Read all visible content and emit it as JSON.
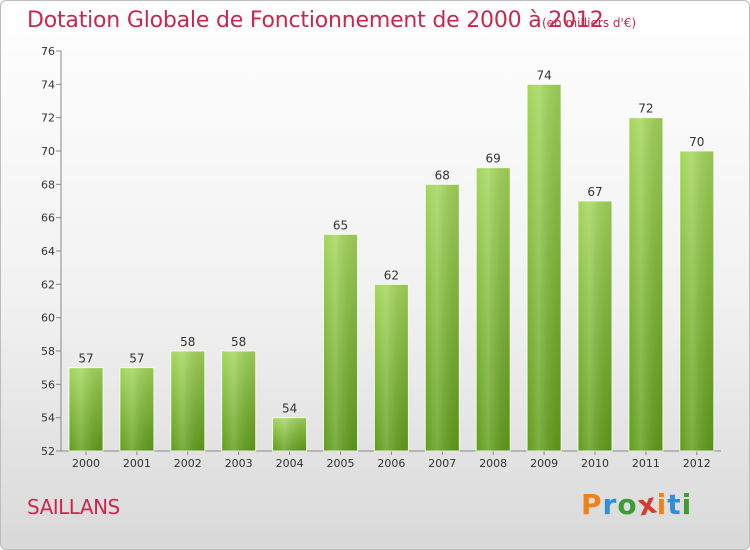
{
  "header": {
    "title": "Dotation Globale de Fonctionnement de 2000 à 2012",
    "unit": "(en milliers d'€)"
  },
  "footer": {
    "place": "SAILLANS",
    "logo_text": "Proxiti"
  },
  "colors": {
    "title": "#c8284e",
    "bar_light": "#a3d65a",
    "bar_dark": "#5f9d19",
    "axis": "#888888",
    "logo": [
      "#f0801a",
      "#2f8fd6",
      "#3d9c34",
      "#d63b2f",
      "#f0801a",
      "#2f8fd6",
      "#3d9c34"
    ]
  },
  "chart_data": {
    "type": "bar",
    "title": "Dotation Globale de Fonctionnement de 2000 à 2012",
    "subtitle": "(en milliers d'€)",
    "xlabel": "",
    "ylabel": "",
    "categories": [
      "2000",
      "2001",
      "2002",
      "2003",
      "2004",
      "2005",
      "2006",
      "2007",
      "2008",
      "2009",
      "2010",
      "2011",
      "2012"
    ],
    "values": [
      57,
      57,
      58,
      58,
      54,
      65,
      62,
      68,
      69,
      74,
      67,
      72,
      70
    ],
    "ylim": [
      52,
      76
    ],
    "yticks": [
      52,
      54,
      56,
      58,
      60,
      62,
      64,
      66,
      68,
      70,
      72,
      74,
      76
    ],
    "grid": false,
    "legend": "none",
    "data_labels": true
  }
}
